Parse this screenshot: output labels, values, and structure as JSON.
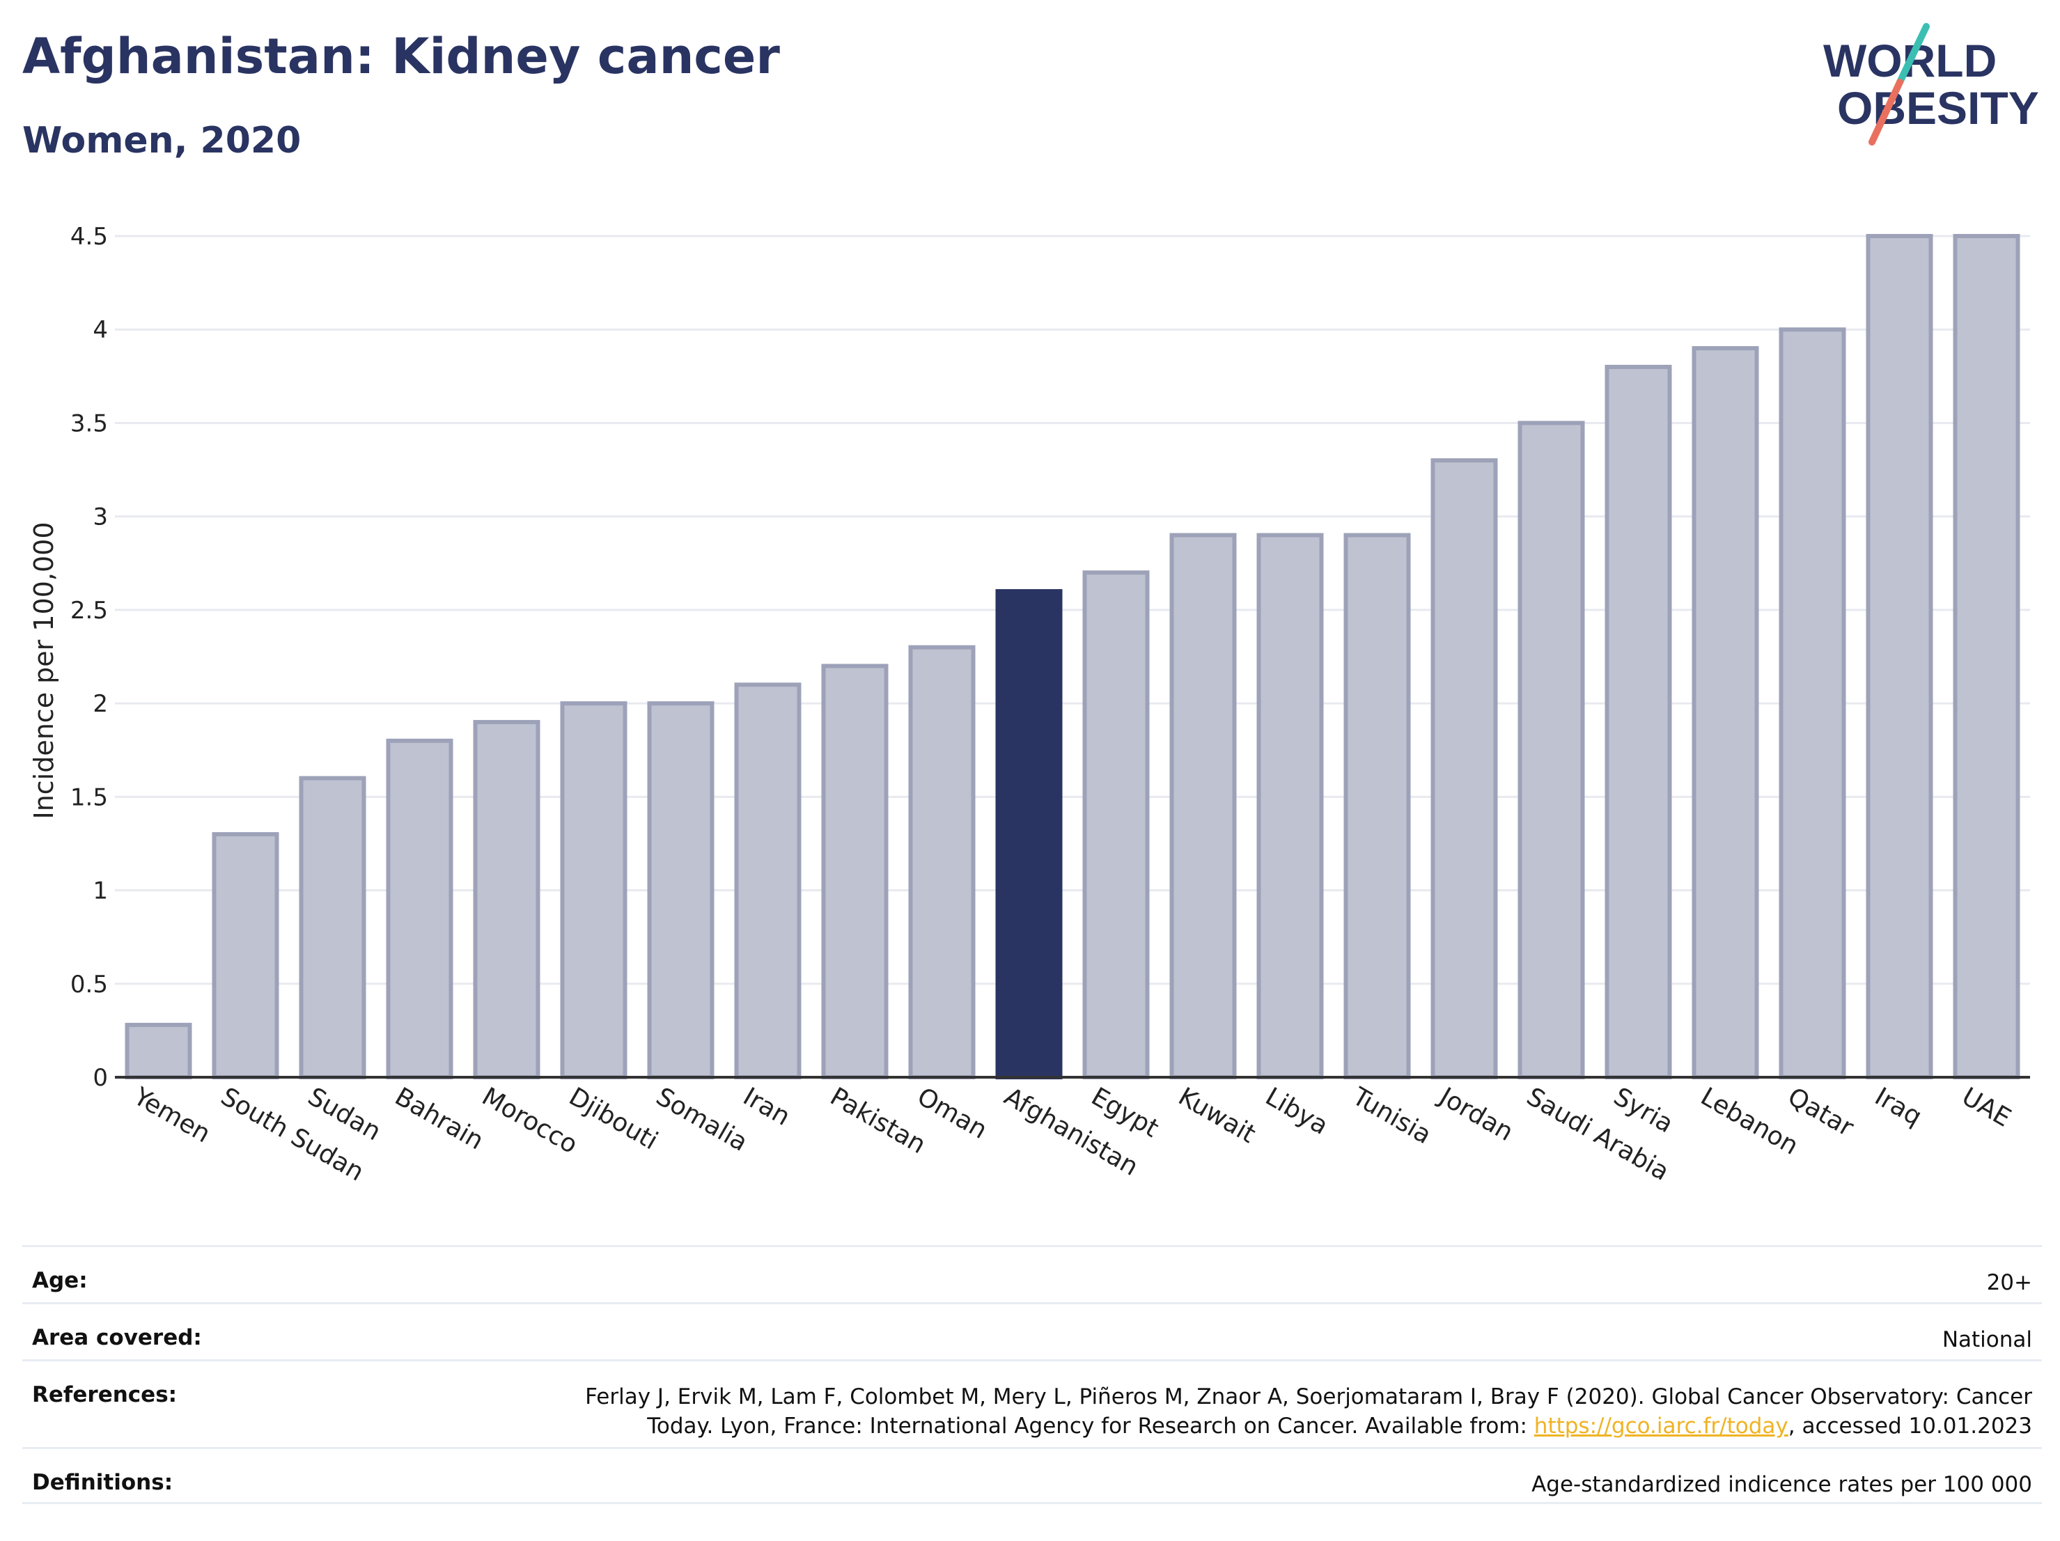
{
  "header": {
    "title": "Afghanistan: Kidney cancer",
    "subtitle": "Women, 2020"
  },
  "logo": {
    "line1": "WORLD",
    "line2": "OBESITY",
    "accent_teal": "#3bbfb3",
    "accent_coral": "#e9705f",
    "text_color": "#2a3462"
  },
  "chart_data": {
    "type": "bar",
    "title": "Afghanistan: Kidney cancer",
    "subtitle": "Women, 2020",
    "xlabel": "",
    "ylabel": "Incidence per 100,000",
    "ylim": [
      0,
      4.5
    ],
    "yticks": [
      0,
      0.5,
      1,
      1.5,
      2,
      2.5,
      3,
      3.5,
      4,
      4.5
    ],
    "ytick_labels": [
      "0",
      "0.5",
      "1",
      "1.5",
      "2",
      "2.5",
      "3",
      "3.5",
      "4",
      "4.5"
    ],
    "categories": [
      "Yemen",
      "South Sudan",
      "Sudan",
      "Bahrain",
      "Morocco",
      "Djibouti",
      "Somalia",
      "Iran",
      "Pakistan",
      "Oman",
      "Afghanistan",
      "Egypt",
      "Kuwait",
      "Libya",
      "Tunisia",
      "Jordan",
      "Saudi Arabia",
      "Syria",
      "Lebanon",
      "Qatar",
      "Iraq",
      "UAE"
    ],
    "values": [
      0.28,
      1.3,
      1.6,
      1.8,
      1.9,
      2.0,
      2.0,
      2.1,
      2.2,
      2.3,
      2.6,
      2.7,
      2.9,
      2.9,
      2.9,
      3.3,
      3.5,
      3.8,
      3.9,
      4.0,
      4.5,
      4.5
    ],
    "highlight": "Afghanistan",
    "grid": true,
    "legend": "none",
    "colors": {
      "bar_fill": "#bfc2d0",
      "bar_stroke": "#9da2b9",
      "highlight_fill": "#2a3462",
      "grid": "#e8eaf0",
      "axis": "#333333"
    }
  },
  "meta": [
    {
      "label": "Age:",
      "value": "20+"
    },
    {
      "label": "Area covered:",
      "value": "National"
    },
    {
      "label": "References:",
      "value_line1": "Ferlay J, Ervik M, Lam F, Colombet M, Mery L, Piñeros M, Znaor A, Soerjomataram I, Bray F (2020). Global Cancer Observatory: Cancer",
      "value_line2_pre": "Today. Lyon, France: International Agency for Research on Cancer. Available from: ",
      "link": "https://gco.iarc.fr/today",
      "value_line2_post": ", accessed 10.01.2023"
    },
    {
      "label": "Definitions:",
      "value": "Age-standardized indicence rates per 100 000"
    }
  ]
}
